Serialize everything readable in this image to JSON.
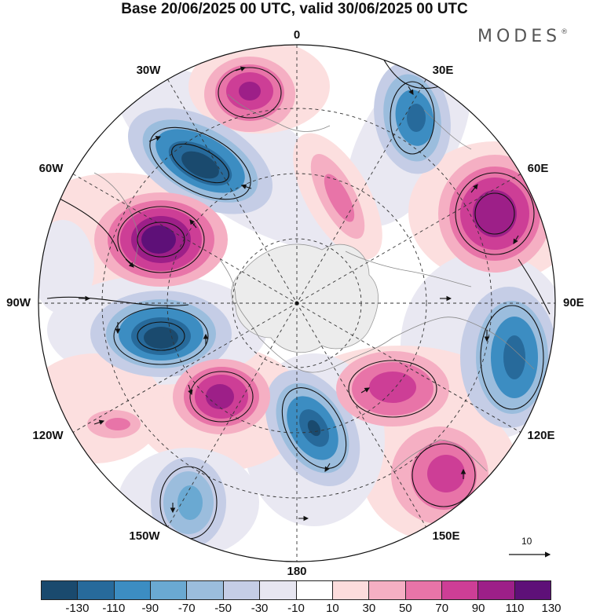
{
  "title": "Base 20/06/2025 00 UTC, valid 30/06/2025 00 UTC",
  "brand": "MODES",
  "brand_mark": "®",
  "longitude_labels": {
    "lon_0": "0",
    "lon_30e": "30E",
    "lon_60e": "60E",
    "lon_90e": "90E",
    "lon_120e": "120E",
    "lon_150e": "150E",
    "lon_180": "180",
    "lon_150w": "150W",
    "lon_120w": "120W",
    "lon_90w": "90W",
    "lon_60w": "60W",
    "lon_30w": "30W"
  },
  "reference_vector": {
    "label": "10"
  },
  "colorbar": {
    "colors": [
      "#1a4a6e",
      "#276a9b",
      "#3c8dc2",
      "#6aa9d2",
      "#9bbddd",
      "#c5cde6",
      "#e7e6f1",
      "#ffffff",
      "#fcdcdc",
      "#f5afc3",
      "#e874a8",
      "#cd3e96",
      "#9d1f88",
      "#5e1078"
    ],
    "ticks": [
      "-130",
      "-110",
      "-90",
      "-70",
      "-50",
      "-30",
      "-10",
      "10",
      "30",
      "50",
      "70",
      "90",
      "110",
      "130"
    ]
  }
}
